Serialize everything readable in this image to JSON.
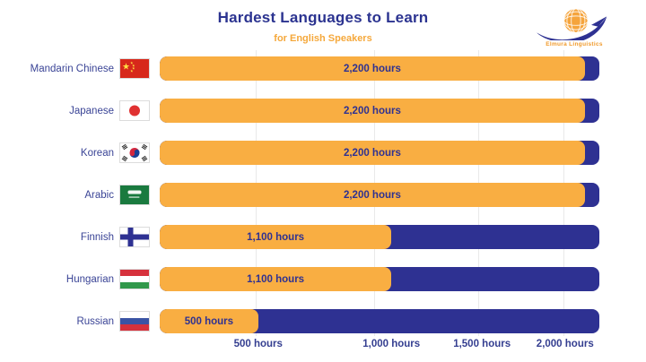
{
  "title": "Hardest Languages to Learn",
  "subtitle": "for English Speakers",
  "logo": {
    "name": "Elmura Linguistics"
  },
  "chart_data": {
    "type": "bar",
    "orientation": "horizontal",
    "title": "Hardest Languages to Learn",
    "subtitle": "for English Speakers",
    "unit": "hours",
    "categories": [
      "Mandarin Chinese",
      "Japanese",
      "Korean",
      "Arabic",
      "Finnish",
      "Hungarian",
      "Russian"
    ],
    "values": [
      2200,
      2200,
      2200,
      2200,
      1100,
      1100,
      500
    ],
    "value_labels": [
      "2,200 hours",
      "2,200 hours",
      "2,200 hours",
      "2,200 hours",
      "1,100 hours",
      "1,100 hours",
      "500 hours"
    ],
    "flags": [
      "China",
      "Japan",
      "South Korea",
      "Saudi Arabia",
      "Finland",
      "Hungary",
      "Russia"
    ],
    "x_ticks": [
      "500 hours",
      "1,000 hours",
      "1,500 hours",
      "2,000 hours"
    ],
    "x_tick_values": [
      500,
      1000,
      1500,
      2000
    ],
    "xlim": [
      0,
      2275
    ],
    "grid": true,
    "legend": false,
    "fill_percents": [
      96.7,
      96.7,
      96.7,
      96.7,
      52.7,
      52.7,
      22.4
    ],
    "tick_grid_percents": [
      21.8,
      48.8,
      72.4,
      91.8
    ],
    "tick_label_percents": [
      22.4,
      52.7,
      73.3,
      92.2
    ],
    "colors": {
      "bar_fill": "#F9AE42",
      "bar_track": "#2E3192",
      "title_text": "#2B3390",
      "subtitle_text": "#F5A83B",
      "label_text": "#3A4496",
      "grid_line": "#E9E9E9"
    }
  }
}
